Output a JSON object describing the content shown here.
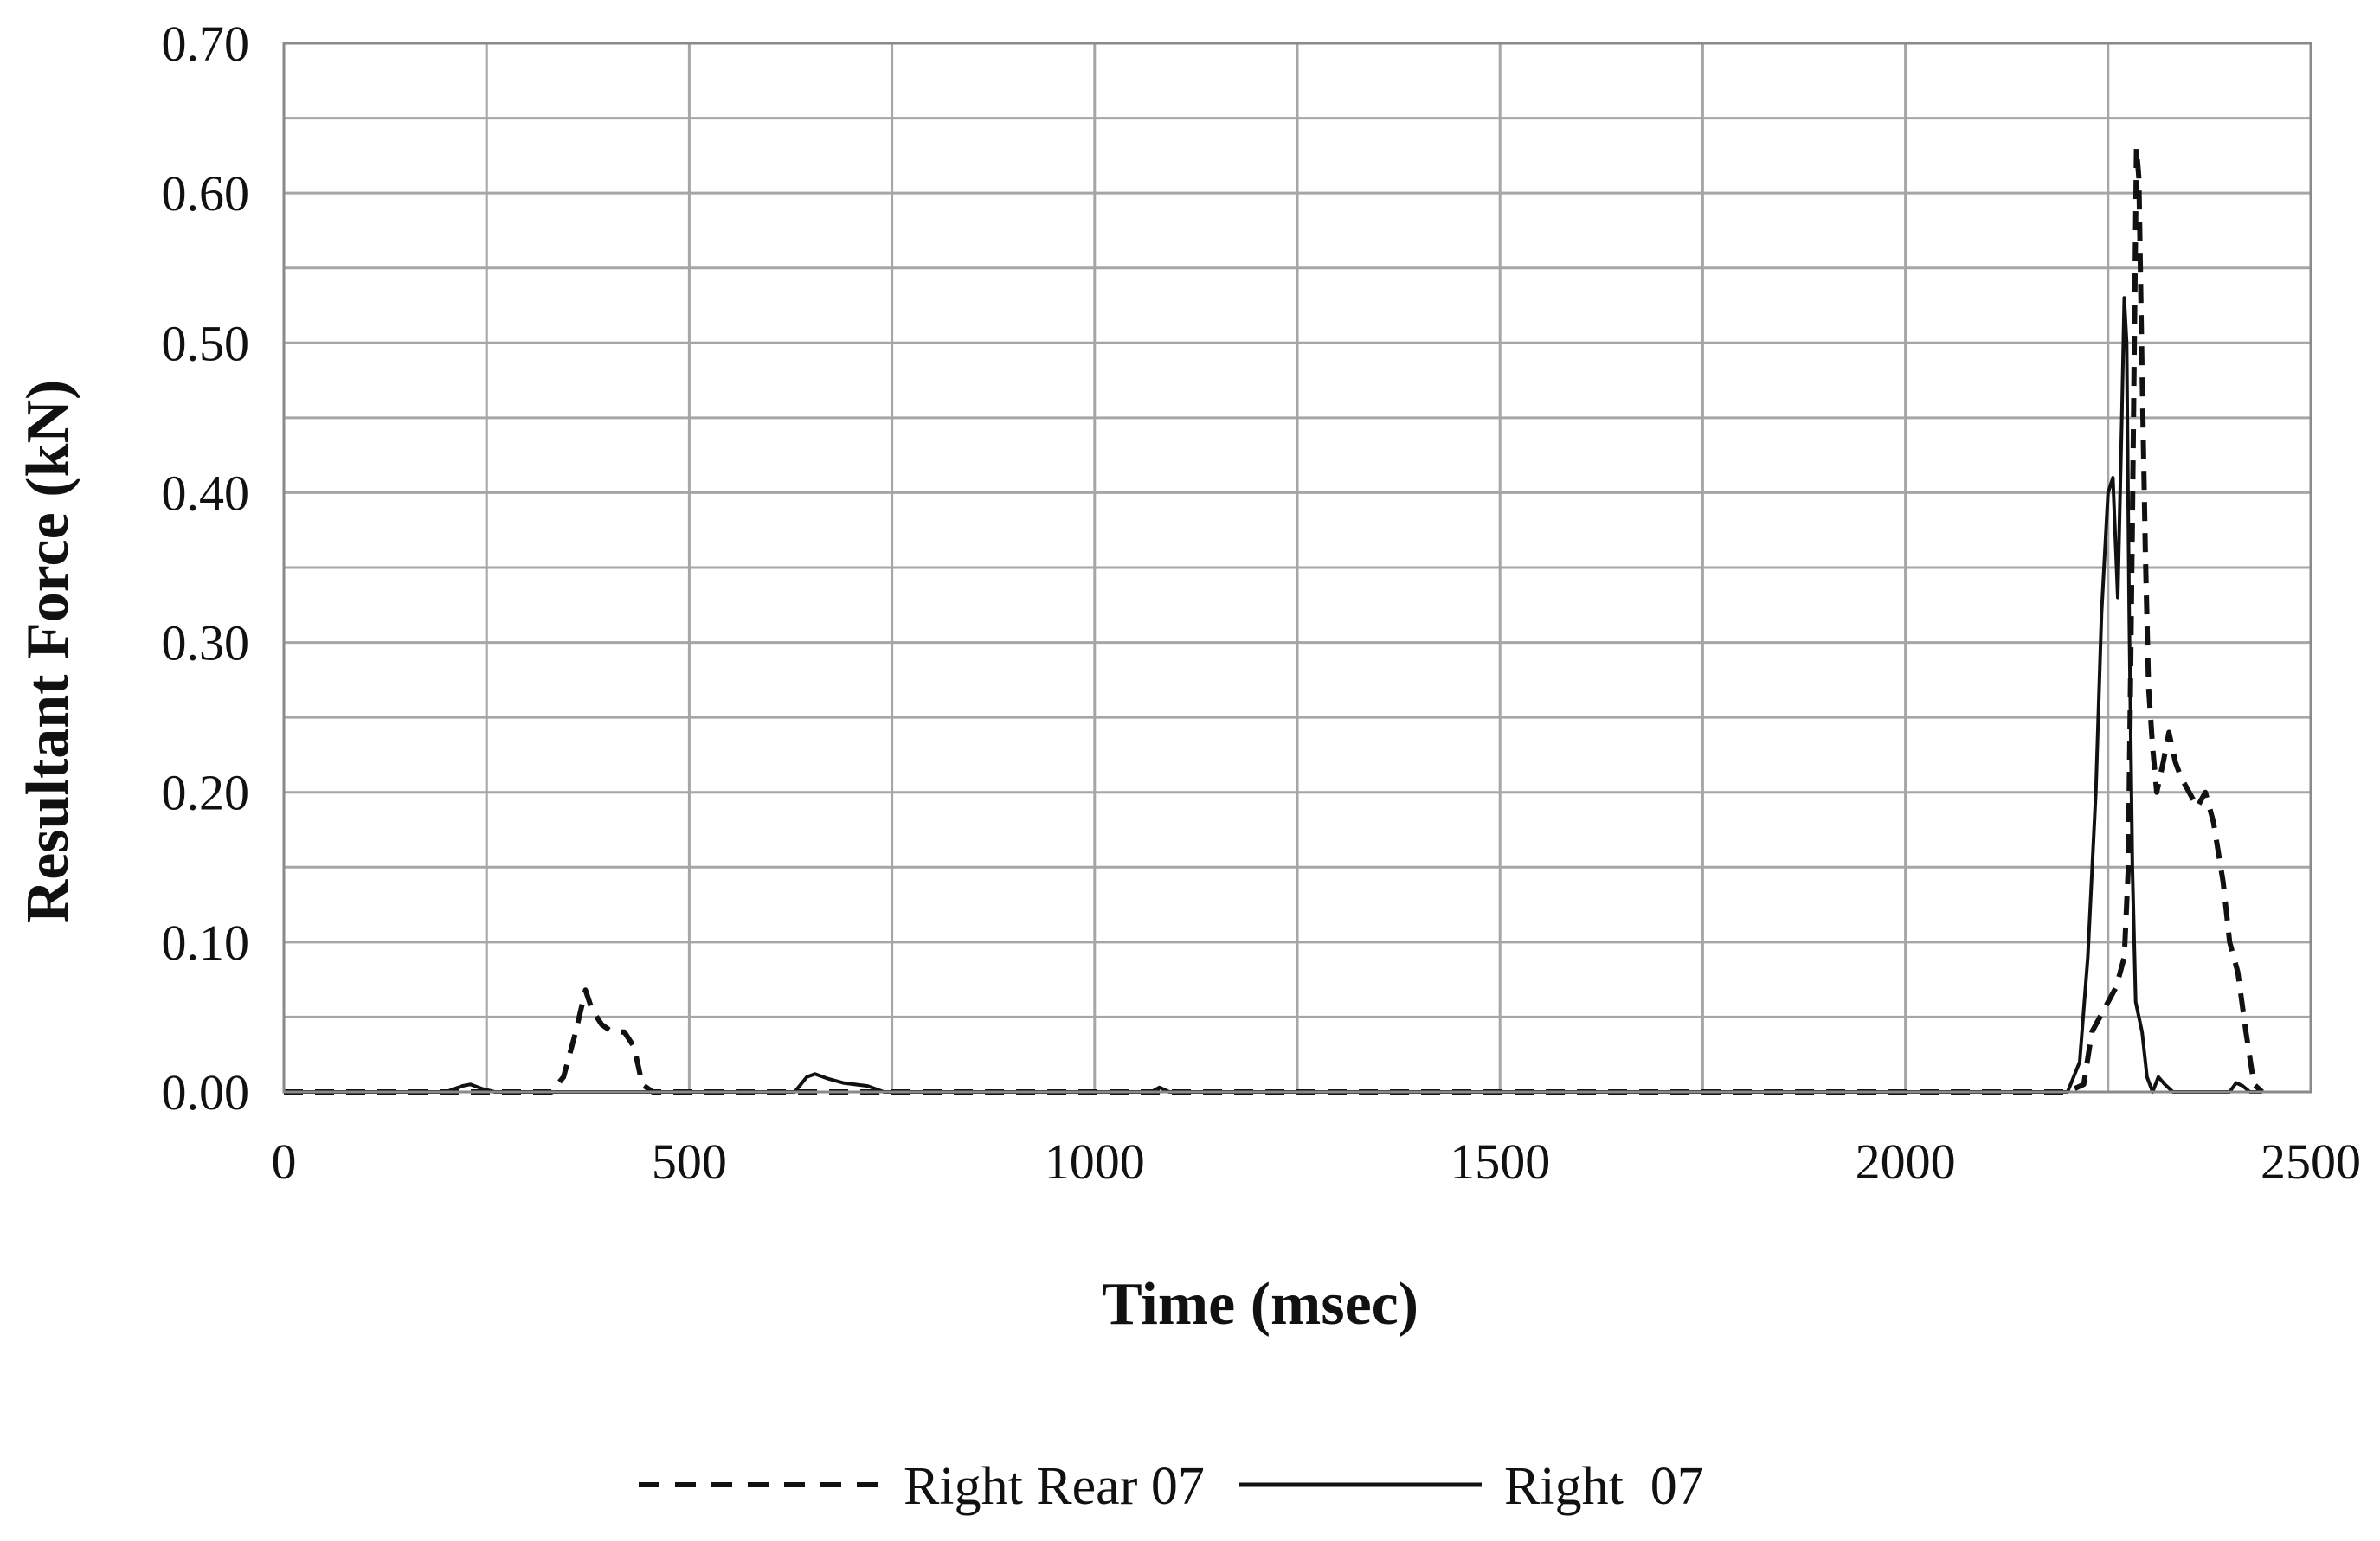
{
  "chart_data": {
    "type": "line",
    "title": "",
    "xlabel": "Time (msec)",
    "ylabel": "Resultant Force (kN)",
    "xlim": [
      0,
      2500
    ],
    "ylim": [
      0,
      0.7
    ],
    "x_ticks": [
      "0",
      "500",
      "1000",
      "1500",
      "2000",
      "2500"
    ],
    "y_ticks": [
      "0.00",
      "0.10",
      "0.20",
      "0.30",
      "0.40",
      "0.50",
      "0.60",
      "0.70"
    ],
    "grid": true,
    "legend_position": "bottom",
    "series": [
      {
        "name": "Right Rear 07",
        "style": "dashed",
        "color": "#111111",
        "x": [
          0,
          300,
          330,
          345,
          360,
          372,
          380,
          392,
          405,
          420,
          432,
          442,
          455,
          470,
          2200,
          2220,
          2230,
          2240,
          2250,
          2260,
          2265,
          2270,
          2275,
          2280,
          2285,
          2288,
          2292,
          2296,
          2300,
          2305,
          2310,
          2318,
          2325,
          2333,
          2340,
          2350,
          2360,
          2370,
          2380,
          2392,
          2400,
          2410,
          2420,
          2430,
          2440
        ],
        "y": [
          0,
          0,
          0,
          0.01,
          0.04,
          0.068,
          0.055,
          0.045,
          0.04,
          0.04,
          0.03,
          0.005,
          0,
          0,
          0,
          0.005,
          0.04,
          0.05,
          0.06,
          0.07,
          0.08,
          0.09,
          0.15,
          0.38,
          0.63,
          0.61,
          0.48,
          0.36,
          0.27,
          0.23,
          0.2,
          0.22,
          0.24,
          0.22,
          0.21,
          0.2,
          0.19,
          0.2,
          0.18,
          0.14,
          0.1,
          0.08,
          0.04,
          0.005,
          0
        ]
      },
      {
        "name": "Right  07",
        "style": "solid",
        "color": "#111111",
        "x": [
          0,
          200,
          220,
          230,
          245,
          260,
          630,
          645,
          655,
          670,
          690,
          720,
          740,
          1070,
          1080,
          1092,
          2200,
          2215,
          2225,
          2235,
          2242,
          2250,
          2256,
          2262,
          2267,
          2270,
          2273,
          2276,
          2280,
          2284,
          2288,
          2292,
          2298,
          2305,
          2312,
          2320,
          2330,
          2340,
          2400,
          2408,
          2416,
          2425,
          2440
        ],
        "y": [
          0,
          0,
          0.004,
          0.005,
          0.002,
          0,
          0,
          0.01,
          0.012,
          0.009,
          0.006,
          0.004,
          0,
          0,
          0.003,
          0,
          0,
          0.02,
          0.09,
          0.2,
          0.32,
          0.4,
          0.41,
          0.33,
          0.45,
          0.53,
          0.5,
          0.32,
          0.15,
          0.06,
          0.05,
          0.04,
          0.01,
          0,
          0.01,
          0.005,
          0,
          0,
          0,
          0.006,
          0.004,
          0,
          0
        ]
      }
    ]
  }
}
